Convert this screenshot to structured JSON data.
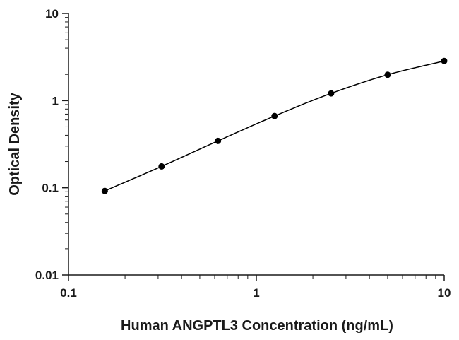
{
  "chart_data": {
    "type": "scatter",
    "xlabel": "Human ANGPTL3 Concentration (ng/mL)",
    "ylabel": "Optical Density",
    "x_scale": "log",
    "y_scale": "log",
    "xlim": [
      0.1,
      10
    ],
    "ylim": [
      0.01,
      10
    ],
    "x_ticks": [
      0.1,
      1,
      10
    ],
    "x_tick_labels": [
      "0.1",
      "1",
      "10"
    ],
    "y_ticks": [
      0.01,
      0.1,
      1,
      10
    ],
    "y_tick_labels": [
      "0.01",
      "0.1",
      "1",
      "10"
    ],
    "grid": false,
    "series": [
      {
        "x": [
          0.156,
          0.313,
          0.625,
          1.25,
          2.5,
          5,
          10
        ],
        "y": [
          0.092,
          0.176,
          0.345,
          0.665,
          1.21,
          1.98,
          2.85
        ],
        "fit_curve": true
      }
    ],
    "colors": {
      "marker": "#000000",
      "line": "#000000",
      "axis": "#1a1a1a"
    }
  }
}
